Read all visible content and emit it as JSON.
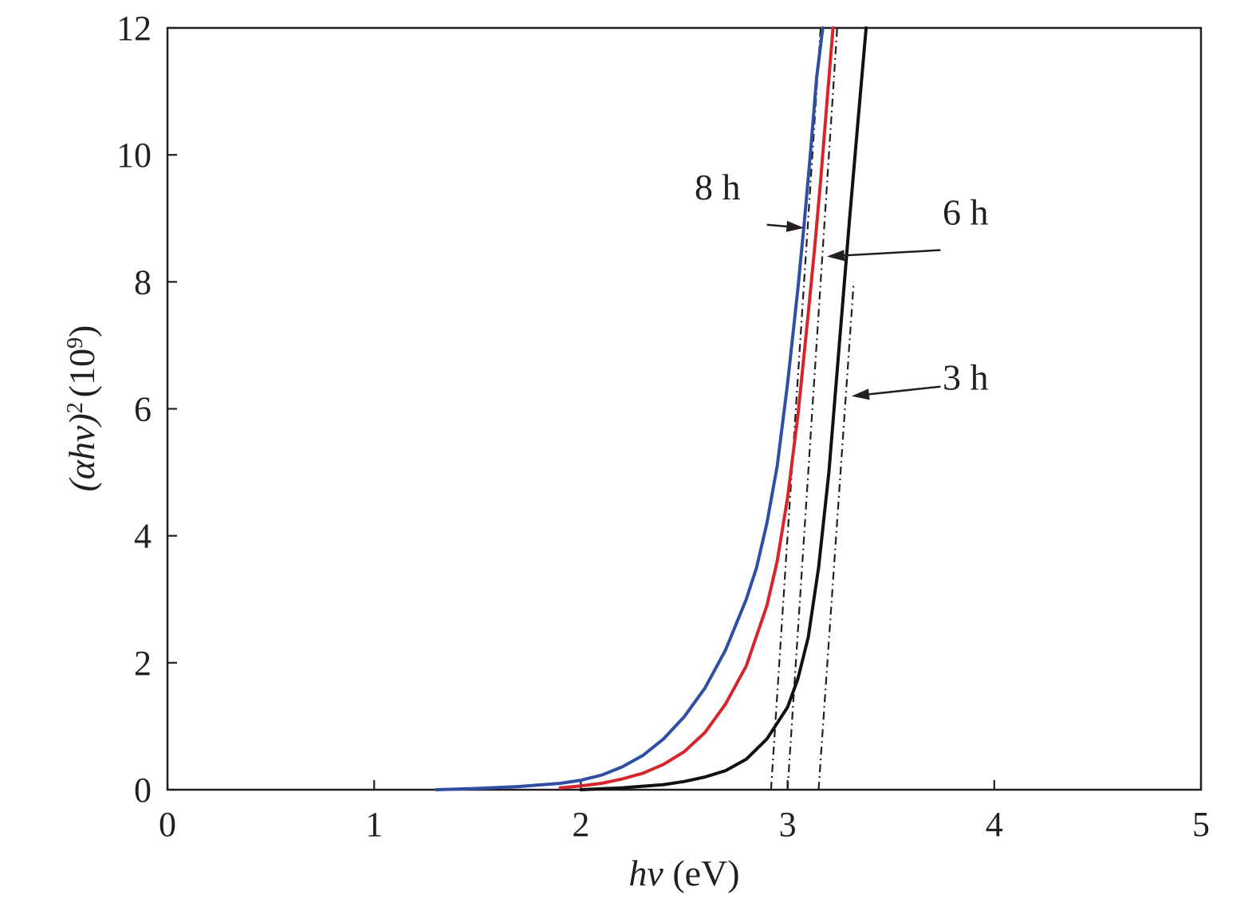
{
  "chart_data": {
    "type": "line",
    "xlabel": {
      "italic": "hv",
      "rest": " (eV)"
    },
    "ylabel": {
      "italic": "(αhv)",
      "sup1": "2",
      "mid": "(10",
      "sup2": "9",
      "end": ")"
    },
    "xlim": [
      0,
      5
    ],
    "ylim": [
      0,
      12
    ],
    "x_ticks": [
      "0",
      "1",
      "2",
      "3",
      "4",
      "5"
    ],
    "y_ticks": [
      "0",
      "2",
      "4",
      "6",
      "8",
      "10",
      "12"
    ],
    "grid": false,
    "series": [
      {
        "name": "8 h",
        "color": "#2e4fa3",
        "x": [
          1.3,
          1.5,
          1.7,
          1.9,
          2.0,
          2.1,
          2.2,
          2.3,
          2.4,
          2.5,
          2.6,
          2.7,
          2.8,
          2.85,
          2.9,
          2.95,
          3.0,
          3.05,
          3.08,
          3.11,
          3.14,
          3.17
        ],
        "y": [
          0.0,
          0.02,
          0.05,
          0.1,
          0.15,
          0.23,
          0.36,
          0.54,
          0.8,
          1.15,
          1.6,
          2.2,
          3.0,
          3.5,
          4.2,
          5.1,
          6.4,
          7.9,
          8.9,
          10.0,
          11.2,
          12.0
        ]
      },
      {
        "name": "6 h",
        "color": "#d7262b",
        "x": [
          1.9,
          2.0,
          2.1,
          2.2,
          2.3,
          2.4,
          2.5,
          2.6,
          2.7,
          2.8,
          2.9,
          2.95,
          3.0,
          3.05,
          3.1,
          3.13,
          3.16,
          3.19,
          3.22
        ],
        "y": [
          0.03,
          0.06,
          0.1,
          0.17,
          0.26,
          0.4,
          0.6,
          0.9,
          1.35,
          1.95,
          2.9,
          3.6,
          4.6,
          5.9,
          7.5,
          8.5,
          9.6,
          10.8,
          12.0
        ]
      },
      {
        "name": "3 h",
        "color": "#111111",
        "x": [
          2.0,
          2.2,
          2.4,
          2.5,
          2.6,
          2.7,
          2.8,
          2.9,
          3.0,
          3.05,
          3.1,
          3.15,
          3.2,
          3.25,
          3.3,
          3.34,
          3.38
        ],
        "y": [
          0.0,
          0.03,
          0.08,
          0.13,
          0.2,
          0.3,
          0.48,
          0.8,
          1.3,
          1.75,
          2.4,
          3.5,
          5.0,
          7.0,
          9.0,
          10.5,
          12.0
        ]
      }
    ],
    "fits": [
      {
        "x": [
          2.92,
          3.16
        ],
        "y": [
          0.0,
          12.0
        ]
      },
      {
        "x": [
          3.0,
          3.24
        ],
        "y": [
          0.0,
          12.0
        ]
      },
      {
        "x": [
          3.15,
          3.32
        ],
        "y": [
          0.0,
          8.0
        ]
      }
    ],
    "annotations": [
      {
        "text": "8 h",
        "text_at": [
          2.55,
          9.3
        ],
        "arrow_from": [
          2.9,
          8.9
        ],
        "arrow_to": [
          3.08,
          8.85
        ]
      },
      {
        "text": "6 h",
        "text_at": [
          3.75,
          8.9
        ],
        "arrow_from": [
          3.74,
          8.5
        ],
        "arrow_to": [
          3.19,
          8.4
        ]
      },
      {
        "text": "3 h",
        "text_at": [
          3.75,
          6.3
        ],
        "arrow_from": [
          3.74,
          6.35
        ],
        "arrow_to": [
          3.31,
          6.2
        ]
      }
    ]
  }
}
